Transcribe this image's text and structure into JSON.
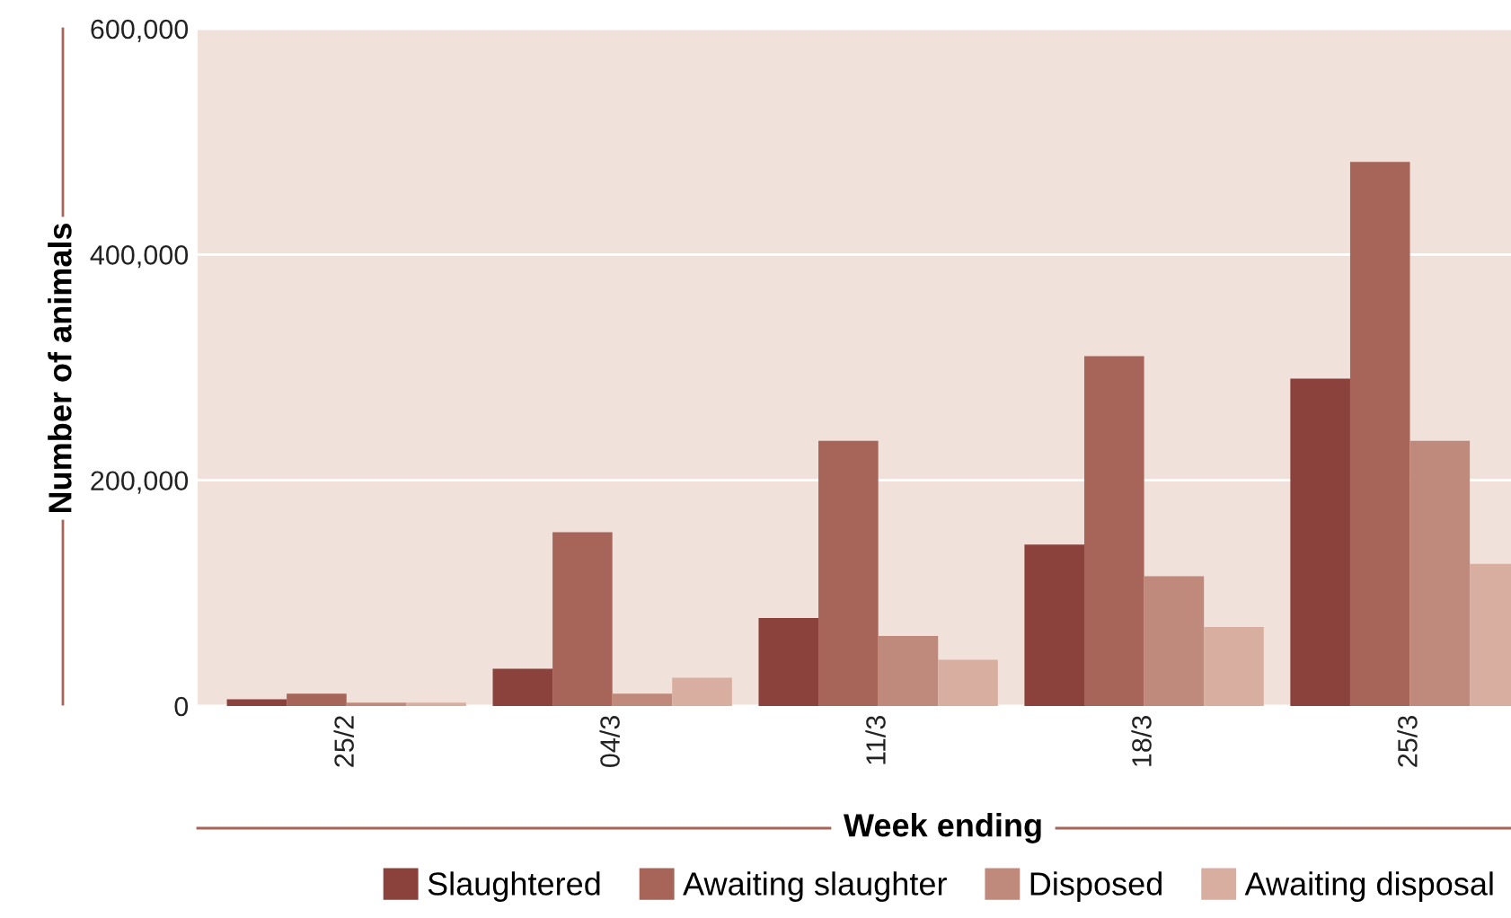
{
  "chart_data": {
    "type": "bar",
    "xlabel": "Week ending",
    "ylabel": "Number of animals",
    "categories": [
      "25/2",
      "04/3",
      "11/3",
      "18/3",
      "25/3"
    ],
    "series": [
      {
        "name": "Slaughtered",
        "color": "#8b423c",
        "values": [
          6000,
          33000,
          78000,
          143000,
          290000
        ]
      },
      {
        "name": "Awaiting slaughter",
        "color": "#a66558",
        "values": [
          11000,
          154000,
          235000,
          310000,
          482000
        ]
      },
      {
        "name": "Disposed",
        "color": "#bf8a7b",
        "values": [
          3000,
          11000,
          62000,
          115000,
          235000
        ]
      },
      {
        "name": "Awaiting disposal",
        "color": "#d7aea0",
        "values": [
          3000,
          25000,
          41000,
          70000,
          126000
        ]
      }
    ],
    "ylim": [
      0,
      600000
    ],
    "yticks": [
      {
        "value": 0,
        "label": "0"
      },
      {
        "value": 200000,
        "label": "200,000"
      },
      {
        "value": 400000,
        "label": "400,000"
      },
      {
        "value": 600000,
        "label": "600,000"
      }
    ],
    "grid": "y",
    "legend": "bottom right"
  }
}
